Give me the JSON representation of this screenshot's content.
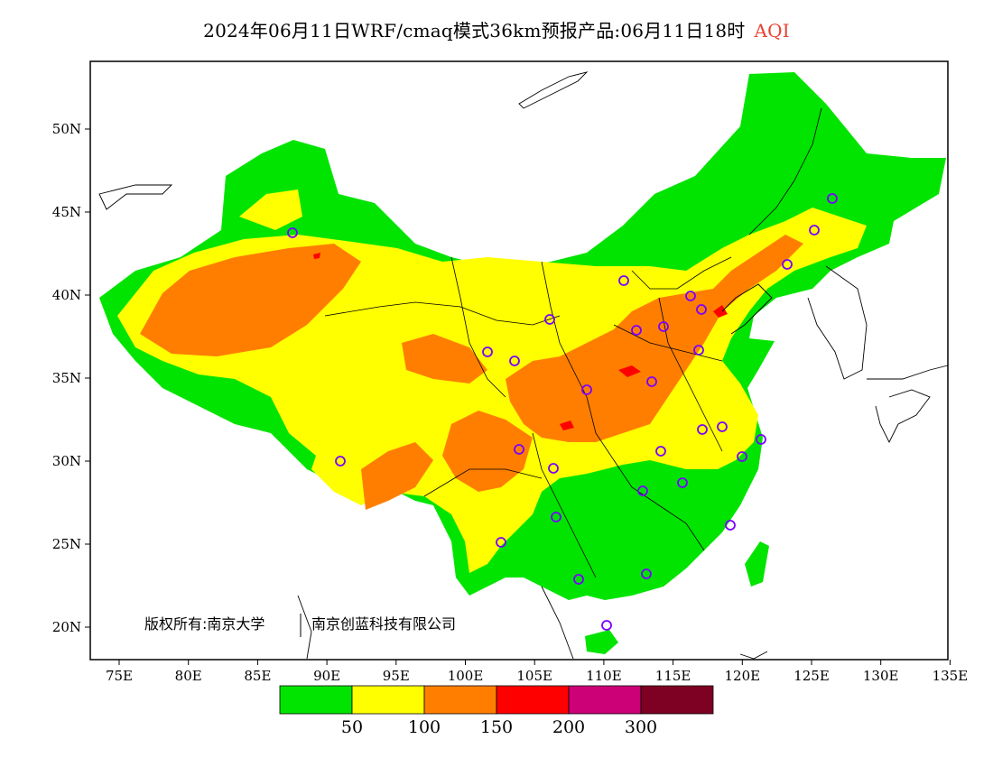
{
  "title": {
    "main": "2024年06月11日WRF/cmaq模式36km预报产品:06月11日18时",
    "variable": "AQI"
  },
  "map": {
    "lon_ticks": [
      "75E",
      "80E",
      "85E",
      "90E",
      "95E",
      "100E",
      "105E",
      "110E",
      "115E",
      "120E",
      "125E",
      "130E",
      "135E"
    ],
    "lat_ticks": [
      "50N",
      "45N",
      "40N",
      "35N",
      "30N",
      "25N",
      "20N"
    ],
    "copyright": "版权所有:南京大学",
    "copyright_org2": "南京创蓝科技有限公司"
  },
  "legend": {
    "colors": [
      "#00e400",
      "#ffff00",
      "#ff7e00",
      "#ff0000",
      "#cc0077",
      "#7e0023"
    ],
    "labels": [
      "50",
      "100",
      "150",
      "200",
      "300"
    ]
  },
  "stations_color": "#7a00ff"
}
